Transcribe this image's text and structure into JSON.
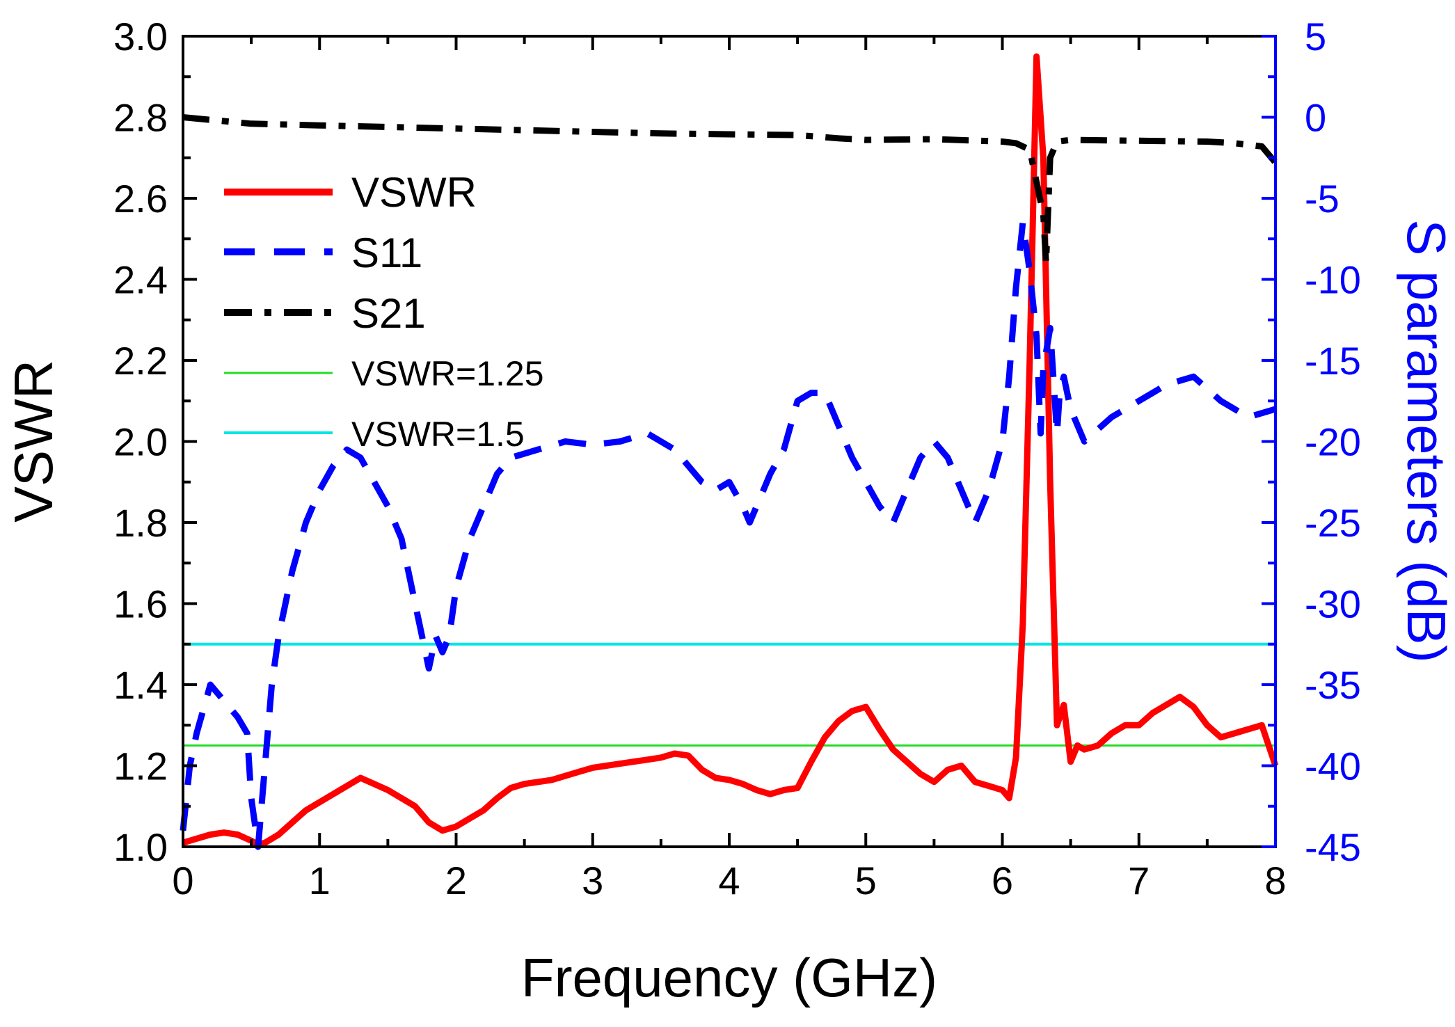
{
  "chart_data": {
    "type": "line",
    "xlabel": "Frequency (GHz)",
    "ylabel_left": "VSWR",
    "ylabel_right": "S parameters (dB)",
    "xlim": [
      0,
      8
    ],
    "ylim_left": [
      1.0,
      3.0
    ],
    "ylim_right": [
      -45,
      5
    ],
    "x_ticks": [
      0,
      1,
      2,
      3,
      4,
      5,
      6,
      7,
      8
    ],
    "x_tick_labels": [
      "0",
      "1",
      "2",
      "3",
      "4",
      "5",
      "6",
      "7",
      "8"
    ],
    "y_left_ticks": [
      1.0,
      1.2,
      1.4,
      1.6,
      1.8,
      2.0,
      2.2,
      2.4,
      2.6,
      2.8,
      3.0
    ],
    "y_left_tick_labels": [
      "1.0",
      "1.2",
      "1.4",
      "1.6",
      "1.8",
      "2.0",
      "2.2",
      "2.4",
      "2.6",
      "2.8",
      "3.0"
    ],
    "y_right_ticks": [
      5,
      0,
      -5,
      -10,
      -15,
      -20,
      -25,
      -30,
      -35,
      -40,
      -45
    ],
    "y_right_tick_labels": [
      "5",
      "0",
      "-5",
      "-10",
      "-15",
      "-20",
      "-25",
      "-30",
      "-35",
      "-40",
      "-45"
    ],
    "colors": {
      "vswr": "#ff0000",
      "s11": "#0000ff",
      "s21": "#000000",
      "vswr125": "#22dd22",
      "vswr15": "#00e5e5",
      "right_axis": "#0000ff",
      "frame": "#000000"
    },
    "series": [
      {
        "name": "VSWR",
        "axis": "left",
        "style": "solid",
        "x": [
          0,
          0.1,
          0.2,
          0.3,
          0.4,
          0.5,
          0.55,
          0.6,
          0.7,
          0.8,
          0.9,
          1.0,
          1.1,
          1.2,
          1.3,
          1.4,
          1.5,
          1.6,
          1.7,
          1.8,
          1.9,
          2.0,
          2.1,
          2.2,
          2.3,
          2.4,
          2.5,
          2.6,
          2.7,
          2.8,
          2.9,
          3.0,
          3.1,
          3.2,
          3.3,
          3.4,
          3.5,
          3.6,
          3.7,
          3.8,
          3.9,
          4.0,
          4.1,
          4.2,
          4.3,
          4.4,
          4.5,
          4.6,
          4.7,
          4.8,
          4.9,
          5.0,
          5.1,
          5.2,
          5.3,
          5.4,
          5.5,
          5.6,
          5.7,
          5.8,
          5.9,
          6.0,
          6.05,
          6.1,
          6.15,
          6.2,
          6.25,
          6.3,
          6.35,
          6.4,
          6.45,
          6.5,
          6.55,
          6.6,
          6.7,
          6.8,
          6.9,
          7.0,
          7.1,
          7.2,
          7.3,
          7.4,
          7.5,
          7.6,
          7.7,
          7.8,
          7.9,
          8.0
        ],
        "values": [
          1.01,
          1.02,
          1.03,
          1.035,
          1.03,
          1.015,
          1.005,
          1.01,
          1.03,
          1.06,
          1.09,
          1.11,
          1.13,
          1.15,
          1.17,
          1.155,
          1.14,
          1.12,
          1.1,
          1.06,
          1.04,
          1.05,
          1.07,
          1.09,
          1.12,
          1.145,
          1.155,
          1.16,
          1.165,
          1.175,
          1.185,
          1.195,
          1.2,
          1.205,
          1.21,
          1.215,
          1.22,
          1.23,
          1.225,
          1.19,
          1.17,
          1.165,
          1.155,
          1.14,
          1.13,
          1.14,
          1.145,
          1.21,
          1.27,
          1.31,
          1.335,
          1.345,
          1.29,
          1.24,
          1.21,
          1.18,
          1.16,
          1.19,
          1.2,
          1.16,
          1.15,
          1.14,
          1.12,
          1.22,
          1.55,
          2.2,
          2.95,
          2.7,
          1.9,
          1.3,
          1.35,
          1.21,
          1.25,
          1.24,
          1.25,
          1.28,
          1.3,
          1.3,
          1.33,
          1.35,
          1.37,
          1.345,
          1.3,
          1.27,
          1.28,
          1.29,
          1.3,
          1.2
        ]
      },
      {
        "name": "S11",
        "axis": "right",
        "style": "dash",
        "x": [
          0,
          0.05,
          0.1,
          0.2,
          0.3,
          0.4,
          0.47,
          0.5,
          0.55,
          0.6,
          0.65,
          0.7,
          0.8,
          0.9,
          1.0,
          1.1,
          1.2,
          1.3,
          1.4,
          1.5,
          1.6,
          1.7,
          1.8,
          1.85,
          1.9,
          1.95,
          2.0,
          2.1,
          2.2,
          2.3,
          2.4,
          2.6,
          2.8,
          3.0,
          3.2,
          3.4,
          3.6,
          3.8,
          3.9,
          4.0,
          4.1,
          4.15,
          4.2,
          4.3,
          4.4,
          4.5,
          4.6,
          4.7,
          4.8,
          4.9,
          5.0,
          5.1,
          5.2,
          5.3,
          5.4,
          5.5,
          5.6,
          5.7,
          5.8,
          5.9,
          6.0,
          6.05,
          6.1,
          6.15,
          6.2,
          6.25,
          6.28,
          6.3,
          6.35,
          6.4,
          6.42,
          6.45,
          6.5,
          6.6,
          6.8,
          7.0,
          7.2,
          7.4,
          7.6,
          7.8,
          8.0
        ],
        "values": [
          -44,
          -40,
          -38,
          -35,
          -36,
          -37,
          -38,
          -42,
          -45,
          -40,
          -35,
          -32,
          -28,
          -25,
          -23,
          -21.5,
          -20.5,
          -21,
          -22.5,
          -24,
          -26,
          -30,
          -34,
          -32,
          -33,
          -32,
          -29,
          -26,
          -24,
          -22,
          -21,
          -20.5,
          -20,
          -20.2,
          -20,
          -19.5,
          -20.5,
          -22.5,
          -23,
          -22.5,
          -24,
          -25,
          -24,
          -22,
          -20.5,
          -17.5,
          -17,
          -17,
          -19,
          -21,
          -22.5,
          -24,
          -25,
          -23,
          -21,
          -20,
          -21,
          -23,
          -25,
          -23,
          -20,
          -16,
          -10.5,
          -6.5,
          -9.5,
          -13.5,
          -19.5,
          -15.5,
          -13,
          -19.5,
          -17,
          -16,
          -18,
          -20,
          -18.5,
          -17.5,
          -16.5,
          -16,
          -17.5,
          -18.5,
          -18
        ]
      },
      {
        "name": "S21",
        "axis": "right",
        "style": "dashdot",
        "x": [
          0,
          0.5,
          1.0,
          1.5,
          2.0,
          2.5,
          3.0,
          3.5,
          4.0,
          4.5,
          4.8,
          5.0,
          5.5,
          6.0,
          6.1,
          6.2,
          6.3,
          6.32,
          6.35,
          6.4,
          6.5,
          7.0,
          7.5,
          7.7,
          7.9,
          8.0
        ],
        "values": [
          0,
          -0.4,
          -0.5,
          -0.6,
          -0.7,
          -0.8,
          -0.9,
          -1.0,
          -1.05,
          -1.1,
          -1.3,
          -1.4,
          -1.35,
          -1.5,
          -1.6,
          -2,
          -6,
          -9,
          -2.5,
          -1.5,
          -1.4,
          -1.45,
          -1.5,
          -1.6,
          -1.8,
          -2.8
        ]
      },
      {
        "name": "VSWR=1.25",
        "axis": "left",
        "style": "thin",
        "x": [
          0,
          8
        ],
        "values": [
          1.25,
          1.25
        ]
      },
      {
        "name": "VSWR=1.5",
        "axis": "left",
        "style": "thin",
        "x": [
          0,
          8
        ],
        "values": [
          1.5,
          1.5
        ]
      }
    ],
    "legend": {
      "placement": "top-left",
      "entries": [
        "VSWR",
        "S11",
        "S21",
        "VSWR=1.25",
        "VSWR=1.5"
      ]
    }
  }
}
